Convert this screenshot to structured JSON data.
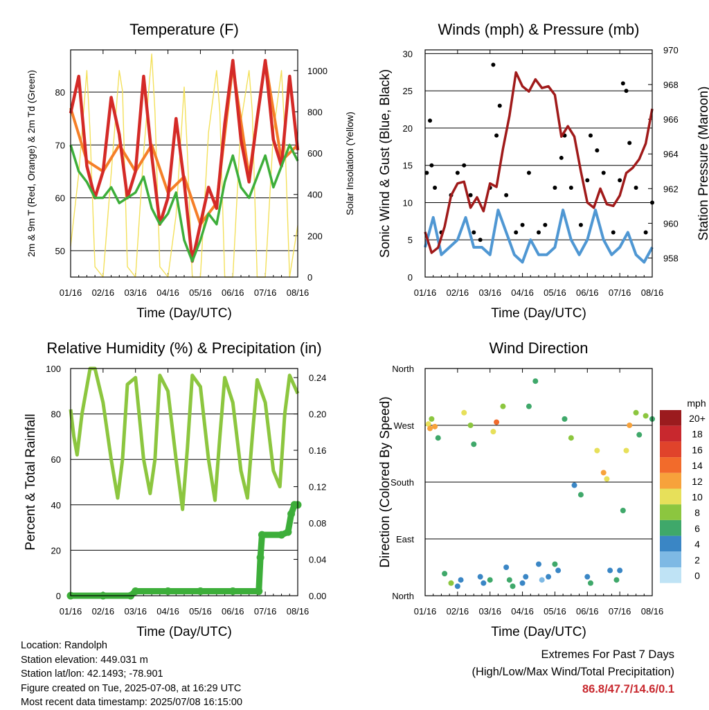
{
  "panels": {
    "temperature": {
      "title": "Temperature (F)",
      "ylabel_left": "2m & 9m T (Red, Orange) & 2m Td (Green)",
      "ylabel_right": "Solar Insolation (Yellow)",
      "xlabel": "Time (Day/UTC)"
    },
    "winds": {
      "title": "Winds (mph) & Pressure (mb)",
      "ylabel_left": "Sonic Wind & Gust (Blue, Black)",
      "ylabel_right": "Station Pressure (Maroon)",
      "xlabel": "Time (Day/UTC)"
    },
    "humidity": {
      "title": "Relative Humidity (%) & Precipitation (in)",
      "ylabel_left": "Percent & Total Rainfall",
      "xlabel": "Time (Day/UTC)"
    },
    "direction": {
      "title": "Wind Direction",
      "ylabel_left": "Direction (Colored By Speed)",
      "xlabel": "Time (Day/UTC)",
      "colorbar_title": "mph",
      "colorbar_labels": [
        "20+",
        "18",
        "16",
        "14",
        "12",
        "10",
        "8",
        "6",
        "4",
        "2",
        "0"
      ],
      "colorbar_colors": [
        "#9b1b1e",
        "#c8282e",
        "#e0432b",
        "#f26b2b",
        "#f7a23b",
        "#e7e05a",
        "#8cc63f",
        "#3fa86a",
        "#3a86c5",
        "#7eb9e4",
        "#bfe3f5"
      ]
    }
  },
  "info": {
    "location": "Location: Randolph",
    "elevation": "Station elevation: 449.031 m",
    "latlon": "Station lat/lon: 42.1493; -78.901",
    "created": "Figure created on Tue, 2025-07-08, at 16:29 UTC",
    "recent": "Most recent data timestamp: 2025/07/08 16:15:00"
  },
  "extremes": {
    "line1": "Extremes For Past 7 Days",
    "line2": "(High/Low/Max Wind/Total Precipitation)",
    "values": "86.8/47.7/14.6/0.1"
  },
  "colors": {
    "t2m": "#d42a27",
    "t9m": "#f57f28",
    "dewpoint": "#3dae3a",
    "solar": "#f3e05a",
    "wind": "#4f97d3",
    "gust": "#000000",
    "pressure": "#a01a1a",
    "rh": "#8cc63f",
    "precip": "#3dae3a"
  },
  "chart_data": [
    {
      "type": "line",
      "title": "Temperature (F)",
      "xlabel": "Time (Day/UTC)",
      "ylabel": "2m & 9m T (Red, Orange) & 2m Td (Green)",
      "ylabel_right": "Solar Insolation (Yellow)",
      "x_ticks": [
        "01/16",
        "02/16",
        "03/16",
        "04/16",
        "05/16",
        "06/16",
        "07/16",
        "08/16"
      ],
      "ylim": [
        45,
        88
      ],
      "yticks": [
        50,
        60,
        70,
        80
      ],
      "ylim_right": [
        0,
        1100
      ],
      "yticks_right": [
        0,
        200,
        400,
        600,
        800,
        1000
      ],
      "grid": true,
      "series": [
        {
          "name": "2m T (Red)",
          "color": "#d42a27",
          "x": [
            0,
            0.25,
            0.5,
            0.75,
            1.0,
            1.25,
            1.5,
            1.75,
            2.0,
            2.25,
            2.5,
            2.75,
            3.0,
            3.25,
            3.5,
            3.75,
            4.0,
            4.25,
            4.5,
            4.75,
            5.0,
            5.25,
            5.5,
            5.75,
            6.0,
            6.25,
            6.5,
            6.75,
            7.0
          ],
          "values": [
            76,
            83,
            66,
            60,
            65,
            79,
            72,
            60,
            65,
            83,
            68,
            55,
            60,
            75,
            63,
            48,
            55,
            62,
            58,
            74,
            86,
            71,
            63,
            75,
            86,
            71,
            66,
            83,
            69
          ]
        },
        {
          "name": "9m T (Orange)",
          "color": "#f57f28",
          "x": [
            0,
            0.5,
            1.0,
            1.5,
            2.0,
            2.5,
            3.0,
            3.5,
            4.0,
            4.5,
            5.0,
            5.5,
            6.0,
            6.5,
            7.0
          ],
          "values": [
            77,
            67,
            65,
            70,
            65,
            70,
            61,
            64,
            55,
            59,
            85,
            64,
            86,
            67,
            70
          ]
        },
        {
          "name": "2m Td (Green)",
          "color": "#3dae3a",
          "x": [
            0,
            0.25,
            0.5,
            0.75,
            1.0,
            1.25,
            1.5,
            1.75,
            2.0,
            2.25,
            2.5,
            2.75,
            3.0,
            3.25,
            3.5,
            3.75,
            4.0,
            4.25,
            4.5,
            4.75,
            5.0,
            5.25,
            5.5,
            5.75,
            6.0,
            6.25,
            6.5,
            6.75,
            7.0
          ],
          "values": [
            70,
            65,
            63,
            60,
            60,
            62,
            59,
            60,
            61,
            64,
            58,
            55,
            57,
            61,
            52,
            48,
            52,
            57,
            55,
            63,
            68,
            62,
            60,
            64,
            68,
            62,
            66,
            70,
            67
          ]
        },
        {
          "name": "Solar Insolation (Yellow)",
          "color": "#f3e05a",
          "axis": "right",
          "x": [
            0,
            0.25,
            0.5,
            0.6,
            0.75,
            1.0,
            1.25,
            1.5,
            1.6,
            1.75,
            2.0,
            2.25,
            2.5,
            2.6,
            2.75,
            3.0,
            3.25,
            3.5,
            3.6,
            3.75,
            4.0,
            4.25,
            4.5,
            4.6,
            4.75,
            5.0,
            5.25,
            5.5,
            5.6,
            5.75,
            6.0,
            6.25,
            6.5,
            6.6,
            6.75,
            7.0
          ],
          "values": [
            150,
            500,
            1000,
            700,
            50,
            0,
            500,
            1000,
            900,
            50,
            0,
            600,
            1080,
            800,
            50,
            0,
            300,
            920,
            600,
            0,
            0,
            700,
            1000,
            800,
            0,
            0,
            750,
            1000,
            800,
            0,
            0,
            700,
            1000,
            700,
            0,
            250
          ]
        }
      ]
    },
    {
      "type": "scatter",
      "title": "Winds (mph) & Pressure (mb)",
      "xlabel": "Time (Day/UTC)",
      "ylabel": "Sonic Wind & Gust (Blue, Black)",
      "ylabel_right": "Station Pressure (Maroon)",
      "x_ticks": [
        "01/16",
        "02/16",
        "03/16",
        "04/16",
        "05/16",
        "06/16",
        "07/16",
        "08/16"
      ],
      "ylim": [
        0,
        30.5
      ],
      "yticks": [
        0,
        5,
        10,
        15,
        20,
        25,
        30
      ],
      "ylim_right": [
        956.9,
        970
      ],
      "yticks_right": [
        958,
        960,
        962,
        964,
        966,
        968,
        970
      ],
      "grid": true,
      "series": [
        {
          "name": "Sonic Wind (Blue)",
          "color": "#4f97d3",
          "x": [
            0,
            0.25,
            0.5,
            0.75,
            1.0,
            1.25,
            1.5,
            1.75,
            2.0,
            2.25,
            2.5,
            2.75,
            3.0,
            3.25,
            3.5,
            3.75,
            4.0,
            4.25,
            4.5,
            4.75,
            5.0,
            5.25,
            5.5,
            5.75,
            6.0,
            6.25,
            6.5,
            6.75,
            7.0
          ],
          "values": [
            4,
            8,
            3,
            4,
            5,
            8,
            4,
            4,
            3,
            9,
            6,
            3,
            2,
            5,
            3,
            3,
            4,
            9,
            5,
            3,
            5,
            9,
            5,
            3,
            4,
            6,
            3,
            2,
            4
          ]
        },
        {
          "name": "Gust (Black)",
          "color": "#000000",
          "x": [
            0.05,
            0.15,
            0.2,
            0.3,
            0.5,
            0.8,
            1.0,
            1.2,
            1.4,
            1.5,
            1.7,
            2.0,
            2.1,
            2.2,
            2.3,
            2.5,
            2.8,
            3.0,
            3.2,
            3.5,
            3.7,
            4.0,
            4.2,
            4.3,
            4.5,
            4.8,
            5.0,
            5.1,
            5.3,
            5.5,
            5.8,
            6.0,
            6.1,
            6.2,
            6.3,
            6.5,
            6.8,
            7.0
          ],
          "values": [
            14,
            21,
            15,
            12,
            6,
            11,
            14,
            15,
            11,
            6,
            5,
            12,
            28.5,
            19,
            23,
            11,
            6,
            7,
            14,
            6,
            7,
            12,
            16,
            19,
            12,
            7,
            13,
            19,
            17,
            14,
            6,
            13,
            26,
            25,
            18,
            12,
            6,
            10
          ]
        },
        {
          "name": "Station Pressure (Maroon)",
          "color": "#a01a1a",
          "axis": "right",
          "x": [
            0,
            0.2,
            0.4,
            0.6,
            0.8,
            1.0,
            1.2,
            1.4,
            1.6,
            1.8,
            2.0,
            2.2,
            2.4,
            2.6,
            2.8,
            3.0,
            3.2,
            3.4,
            3.6,
            3.8,
            4.0,
            4.2,
            4.4,
            4.6,
            4.8,
            5.0,
            5.2,
            5.4,
            5.6,
            5.8,
            6.0,
            6.2,
            6.4,
            6.6,
            6.8,
            7.0
          ],
          "values": [
            959.5,
            958.3,
            958.6,
            959.8,
            961.6,
            962.3,
            962.4,
            960.9,
            961.5,
            960.7,
            962.3,
            962.1,
            964.3,
            966.2,
            968.7,
            967.9,
            967.6,
            968.3,
            967.8,
            967.9,
            967.4,
            965.0,
            965.6,
            965.0,
            963.0,
            961.2,
            960.9,
            962.0,
            961.1,
            961.0,
            961.6,
            962.9,
            963.2,
            963.7,
            964.6,
            966.6
          ]
        }
      ]
    },
    {
      "type": "line",
      "title": "Relative Humidity (%) & Precipitation (in)",
      "xlabel": "Time (Day/UTC)",
      "ylabel": "Percent & Total Rainfall",
      "x_ticks": [
        "01/16",
        "02/16",
        "03/16",
        "04/16",
        "05/16",
        "06/16",
        "07/16",
        "08/16"
      ],
      "ylim": [
        0,
        100
      ],
      "yticks": [
        0,
        20,
        40,
        60,
        80,
        100
      ],
      "ylim_right": [
        0,
        0.25
      ],
      "yticks_right": [
        "0.00",
        "0.04",
        "0.08",
        "0.12",
        "0.16",
        "0.20",
        "0.24"
      ],
      "grid": true,
      "series": [
        {
          "name": "Relative Humidity",
          "color": "#8cc63f",
          "x": [
            0,
            0.1,
            0.2,
            0.35,
            0.5,
            0.6,
            0.75,
            1.0,
            1.25,
            1.45,
            1.6,
            1.75,
            2.0,
            2.25,
            2.45,
            2.6,
            2.75,
            3.0,
            3.25,
            3.45,
            3.6,
            3.75,
            4.0,
            4.25,
            4.45,
            4.6,
            4.75,
            5.0,
            5.25,
            5.45,
            5.6,
            5.75,
            6.0,
            6.25,
            6.45,
            6.6,
            6.75,
            7.0
          ],
          "values": [
            82,
            70,
            62,
            80,
            92,
            100,
            100,
            85,
            60,
            43,
            60,
            93,
            96,
            60,
            45,
            60,
            97,
            90,
            60,
            38,
            65,
            97,
            92,
            60,
            42,
            70,
            96,
            85,
            55,
            43,
            70,
            95,
            85,
            55,
            48,
            80,
            97,
            89
          ]
        },
        {
          "name": "Total Rainfall",
          "color": "#3dae3a",
          "axis": "right",
          "x": [
            0,
            1.0,
            1.85,
            2.0,
            3.0,
            4.0,
            5.0,
            5.8,
            5.85,
            5.9,
            6.5,
            6.7,
            6.8,
            6.9,
            7.0
          ],
          "values": [
            0.0,
            0.0,
            0.0,
            0.005,
            0.005,
            0.005,
            0.005,
            0.005,
            0.042,
            0.067,
            0.067,
            0.07,
            0.09,
            0.1,
            0.1
          ]
        }
      ]
    },
    {
      "type": "scatter",
      "title": "Wind Direction",
      "xlabel": "Time (Day/UTC)",
      "ylabel": "Direction (Colored By Speed)",
      "x_ticks": [
        "01/16",
        "02/16",
        "03/16",
        "04/16",
        "05/16",
        "06/16",
        "07/16",
        "08/16"
      ],
      "y_ticks": [
        "North",
        "East",
        "South",
        "West",
        "North"
      ],
      "ylim": [
        0,
        360
      ],
      "grid": true,
      "legend": "right",
      "series": [
        {
          "name": "Wind direction (deg)",
          "x": [
            0.1,
            0.15,
            0.2,
            0.3,
            0.4,
            0.6,
            0.8,
            1.0,
            1.1,
            1.2,
            1.4,
            1.5,
            1.7,
            1.8,
            2.0,
            2.1,
            2.2,
            2.4,
            2.5,
            2.6,
            2.7,
            3.0,
            3.1,
            3.2,
            3.4,
            3.5,
            3.6,
            3.8,
            4.0,
            4.1,
            4.3,
            4.5,
            4.6,
            4.8,
            5.0,
            5.1,
            5.3,
            5.5,
            5.6,
            5.7,
            5.9,
            6.0,
            6.1,
            6.2,
            6.3,
            6.5,
            6.6,
            6.8,
            7.0
          ],
          "values": [
            272,
            265,
            280,
            268,
            250,
            35,
            20,
            15,
            25,
            290,
            270,
            240,
            30,
            20,
            25,
            260,
            275,
            300,
            45,
            25,
            15,
            20,
            30,
            300,
            340,
            50,
            25,
            30,
            50,
            40,
            280,
            250,
            175,
            160,
            30,
            20,
            230,
            195,
            185,
            40,
            25,
            40,
            135,
            230,
            270,
            290,
            255,
            285,
            280
          ],
          "speeds": [
            9,
            11,
            7,
            12,
            6,
            5,
            8,
            4,
            3,
            9,
            7,
            5,
            4,
            3,
            6,
            10,
            14,
            8,
            4,
            5,
            6,
            3,
            4,
            6,
            5,
            3,
            2,
            4,
            6,
            4,
            6,
            7,
            4,
            5,
            3,
            6,
            9,
            12,
            10,
            4,
            5,
            3,
            6,
            9,
            11,
            8,
            6,
            7,
            6
          ]
        }
      ]
    }
  ]
}
